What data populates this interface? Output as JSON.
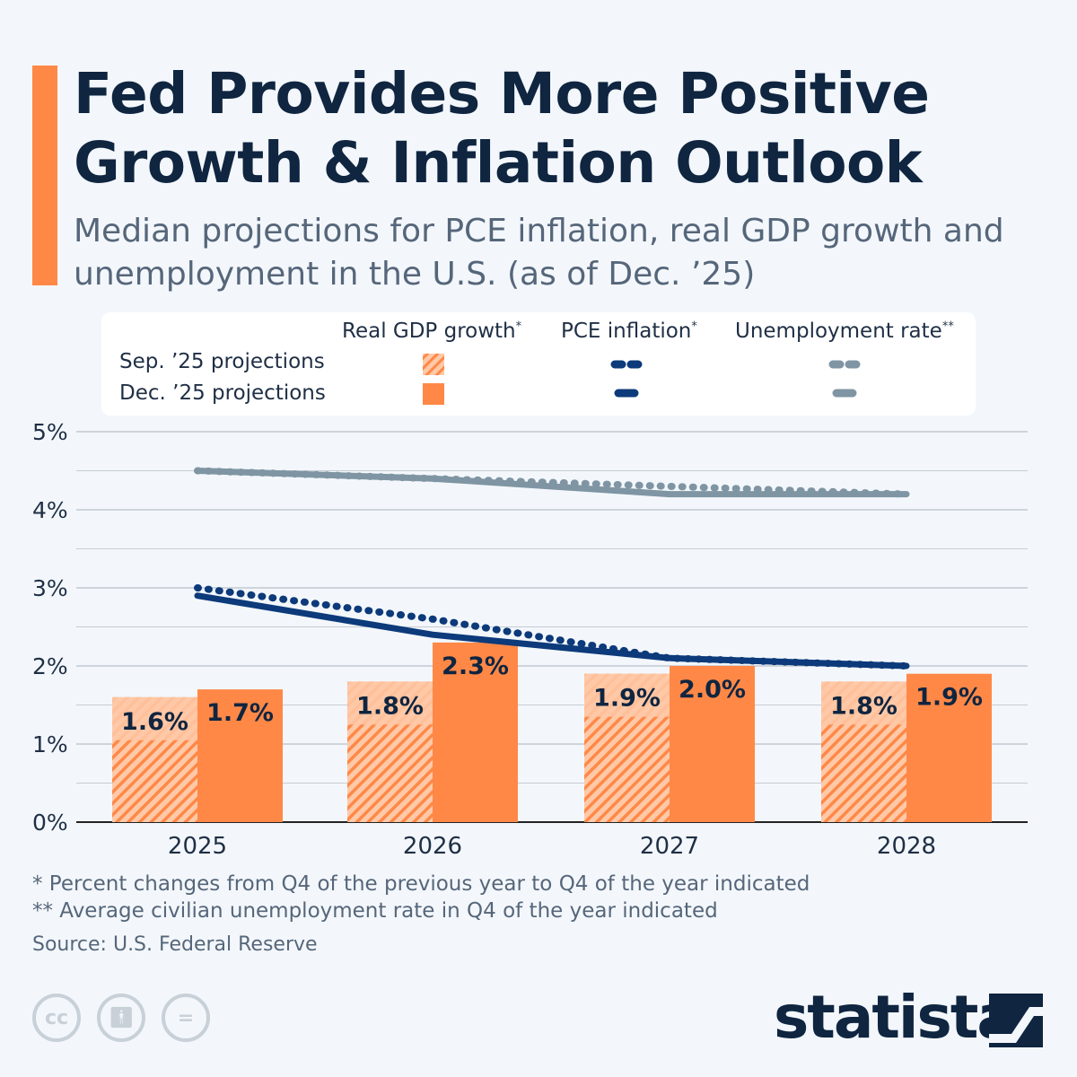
{
  "title_line1": "Fed Provides More Positive",
  "title_line2": "Growth & Inflation Outlook",
  "subtitle": "Median projections for PCE inflation, real GDP growth and unemployment in the U.S. (as of Dec. ’25)",
  "legend": {
    "col_gdp": "Real GDP growth",
    "col_gdp_mark": "*",
    "col_pce": "PCE inflation",
    "col_pce_mark": "*",
    "col_unemp": "Unemployment rate",
    "col_unemp_mark": "**",
    "row_sep": "Sep. ’25 projections",
    "row_dec": "Dec. ’25 projections"
  },
  "colors": {
    "gdp": "#ff8847",
    "gdp_sep": "#ffc9a8",
    "pce": "#0c3a7a",
    "unemp": "#7f95a3",
    "text": "#0f2540"
  },
  "chart_data": {
    "type": "bar",
    "categories": [
      "2025",
      "2026",
      "2027",
      "2028"
    ],
    "y_ticks": [
      "0%",
      "1%",
      "2%",
      "3%",
      "4%",
      "5%"
    ],
    "ylim": [
      0,
      5
    ],
    "grid": true,
    "legend_placement": "top",
    "series": [
      {
        "name": "Real GDP growth – Sep. ’25 projections",
        "kind": "bar-hatched",
        "values": [
          1.6,
          1.8,
          1.9,
          1.8
        ],
        "labels": [
          "1.6%",
          "1.8%",
          "1.9%",
          "1.8%"
        ]
      },
      {
        "name": "Real GDP growth – Dec. ’25 projections",
        "kind": "bar",
        "values": [
          1.7,
          2.3,
          2.0,
          1.9
        ],
        "labels": [
          "1.7%",
          "2.3%",
          "2.0%",
          "1.9%"
        ]
      },
      {
        "name": "PCE inflation – Sep. ’25 projections",
        "kind": "line-dotted",
        "values": [
          3.0,
          2.6,
          2.1,
          2.0
        ]
      },
      {
        "name": "PCE inflation – Dec. ’25 projections",
        "kind": "line",
        "values": [
          2.9,
          2.4,
          2.1,
          2.0
        ]
      },
      {
        "name": "Unemployment rate – Sep. ’25 projections",
        "kind": "line-dotted",
        "values": [
          4.5,
          4.4,
          4.3,
          4.2
        ]
      },
      {
        "name": "Unemployment rate – Dec. ’25 projections",
        "kind": "line",
        "values": [
          4.5,
          4.4,
          4.2,
          4.2
        ]
      }
    ]
  },
  "notes": {
    "note1": "*   Percent changes from Q4 of the previous year to Q4 of the year indicated",
    "note2": "** Average civilian unemployment rate in Q4 of the year indicated"
  },
  "source": "Source: U.S. Federal Reserve",
  "license_icons": [
    "cc-icon",
    "attribution-icon",
    "no-derivatives-icon"
  ],
  "logo": "statista"
}
